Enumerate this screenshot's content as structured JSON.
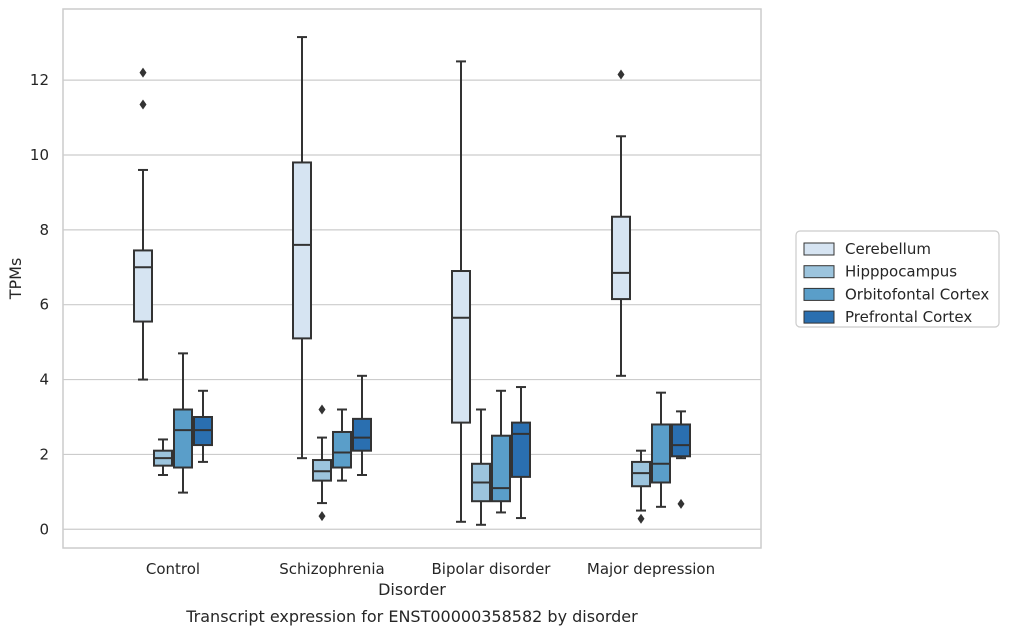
{
  "chart_data": {
    "type": "box",
    "xlabel": "Disorder",
    "ylabel": "TPMs",
    "caption": "Transcript expression for ENST00000358582 by disorder",
    "ylim": [
      -0.5,
      13.9
    ],
    "yticks": [
      0,
      2,
      4,
      6,
      8,
      10,
      12
    ],
    "grid": true,
    "legend_position": "right",
    "categories": [
      "Control",
      "Schizophrenia",
      "Bipolar disorder",
      "Major depression"
    ],
    "series": [
      {
        "name": "Cerebellum",
        "color": "#d6e4f2",
        "boxes": [
          {
            "whislo": 4.0,
            "q1": 5.55,
            "med": 7.0,
            "q3": 7.45,
            "whishi": 9.6,
            "fliers": [
              11.35,
              12.2
            ]
          },
          {
            "whislo": 1.9,
            "q1": 5.1,
            "med": 7.6,
            "q3": 9.8,
            "whishi": 13.15,
            "fliers": []
          },
          {
            "whislo": 0.2,
            "q1": 2.85,
            "med": 5.65,
            "q3": 6.9,
            "whishi": 12.5,
            "fliers": []
          },
          {
            "whislo": 4.1,
            "q1": 6.15,
            "med": 6.85,
            "q3": 8.35,
            "whishi": 10.5,
            "fliers": [
              12.15
            ]
          }
        ]
      },
      {
        "name": "Hipppocampus",
        "color": "#9cc4dd",
        "boxes": [
          {
            "whislo": 1.45,
            "q1": 1.7,
            "med": 1.9,
            "q3": 2.1,
            "whishi": 2.4,
            "fliers": []
          },
          {
            "whislo": 0.7,
            "q1": 1.3,
            "med": 1.55,
            "q3": 1.85,
            "whishi": 2.45,
            "fliers": [
              0.35,
              3.2
            ]
          },
          {
            "whislo": 0.12,
            "q1": 0.75,
            "med": 1.25,
            "q3": 1.75,
            "whishi": 3.2,
            "fliers": []
          },
          {
            "whislo": 0.5,
            "q1": 1.15,
            "med": 1.5,
            "q3": 1.8,
            "whishi": 2.1,
            "fliers": [
              0.28
            ]
          }
        ]
      },
      {
        "name": "Orbitofontal Cortex",
        "color": "#5a9ec9",
        "boxes": [
          {
            "whislo": 0.98,
            "q1": 1.65,
            "med": 2.65,
            "q3": 3.2,
            "whishi": 4.7,
            "fliers": []
          },
          {
            "whislo": 1.3,
            "q1": 1.65,
            "med": 2.05,
            "q3": 2.6,
            "whishi": 3.2,
            "fliers": []
          },
          {
            "whislo": 0.45,
            "q1": 0.75,
            "med": 1.1,
            "q3": 2.5,
            "whishi": 3.7,
            "fliers": []
          },
          {
            "whislo": 0.6,
            "q1": 1.25,
            "med": 1.75,
            "q3": 2.8,
            "whishi": 3.65,
            "fliers": []
          }
        ]
      },
      {
        "name": "Prefrontal Cortex",
        "color": "#2a6fb0",
        "boxes": [
          {
            "whislo": 1.8,
            "q1": 2.25,
            "med": 2.65,
            "q3": 3.0,
            "whishi": 3.7,
            "fliers": []
          },
          {
            "whislo": 1.45,
            "q1": 2.1,
            "med": 2.45,
            "q3": 2.95,
            "whishi": 4.1,
            "fliers": []
          },
          {
            "whislo": 0.3,
            "q1": 1.4,
            "med": 2.55,
            "q3": 2.85,
            "whishi": 3.8,
            "fliers": []
          },
          {
            "whislo": 1.9,
            "q1": 1.95,
            "med": 2.25,
            "q3": 2.8,
            "whishi": 3.15,
            "fliers": [
              0.68
            ]
          }
        ]
      }
    ]
  },
  "style": {
    "edge_color": "#333333",
    "grid_color": "#cccccc",
    "frame_color": "#cccccc"
  }
}
